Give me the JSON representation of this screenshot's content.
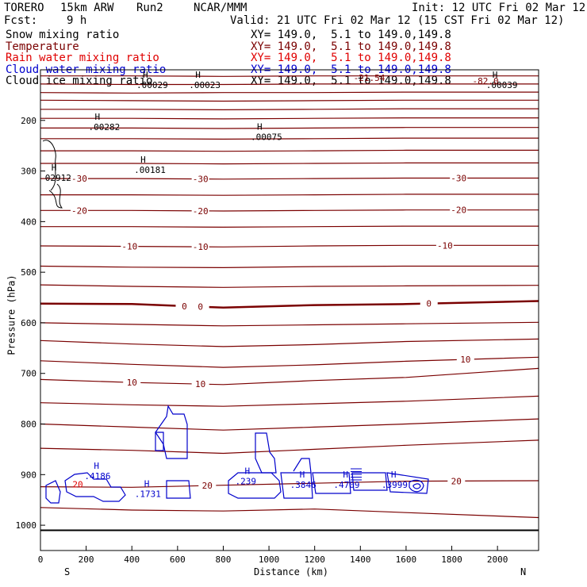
{
  "header": {
    "model": "TORERO",
    "resolution": "15km ARW",
    "run": "Run2",
    "org": "NCAR/MMM",
    "init": "Init: 12 UTC Fri 02 Mar 12",
    "fcst_label": "Fcst:",
    "fcst_value": "9 h",
    "valid": "Valid: 21 UTC Fri 02 Mar 12 (15 CST Fri 02 Mar 12)"
  },
  "fields": [
    {
      "name": "Snow mixing ratio",
      "xy": "XY= 149.0,  5.1 to 149.0,149.8",
      "color": "#000000"
    },
    {
      "name": "Temperature",
      "xy": "XY= 149.0,  5.1 to 149.0,149.8",
      "color": "#7a0000"
    },
    {
      "name": "Rain water mixing ratio",
      "xy": "XY= 149.0,  5.1 to 149.0,149.8",
      "color": "#e00000"
    },
    {
      "name": "Cloud water mixing ratio",
      "xy": "XY= 149.0,  5.1 to 149.0,149.8",
      "color": "#0000cc"
    },
    {
      "name": "Cloud ice mixing ratio",
      "xy": "XY= 149.0,  5.1 to 149.0,149.8",
      "color": "#000000"
    }
  ],
  "chart_data": {
    "type": "contour",
    "xlabel": "Distance (km)",
    "ylabel": "Pressure (hPa)",
    "xlim": [
      0,
      2180
    ],
    "ylim": [
      1050,
      100
    ],
    "x_ticks": [
      0,
      200,
      400,
      600,
      800,
      1000,
      1200,
      1400,
      1600,
      1800,
      2000
    ],
    "y_ticks": [
      200,
      300,
      400,
      500,
      600,
      700,
      800,
      900,
      1000
    ],
    "x_end_labels": {
      "left": "S",
      "right": "N"
    },
    "ground_pressure": 1010,
    "temperature_isotherms": [
      {
        "y": [
          112,
          112,
          113,
          112,
          112,
          112
        ]
      },
      {
        "y": [
          128,
          129,
          129,
          128,
          128,
          128
        ]
      },
      {
        "y": [
          145,
          146,
          145,
          145,
          144,
          144
        ]
      },
      {
        "y": [
          160,
          161,
          162,
          161,
          160,
          160
        ]
      },
      {
        "y": [
          178,
          178,
          179,
          178,
          177,
          177
        ]
      },
      {
        "y": [
          196,
          196,
          197,
          196,
          195,
          195
        ]
      },
      {
        "y": [
          215,
          215,
          216,
          215,
          214,
          214
        ]
      },
      {
        "y": [
          236,
          236,
          237,
          236,
          235,
          235
        ]
      },
      {
        "y": [
          260,
          260,
          261,
          260,
          259,
          259
        ]
      },
      {
        "y": [
          285,
          285,
          286,
          285,
          284,
          284
        ]
      },
      {
        "y": [
          315,
          315,
          316,
          315,
          314,
          314
        ],
        "label": "-30",
        "label_x": [
          170,
          700,
          1830
        ]
      },
      {
        "y": [
          347,
          347,
          348,
          347,
          346,
          346
        ]
      },
      {
        "y": [
          378,
          378,
          379,
          378,
          377,
          377
        ],
        "label": "-20",
        "label_x": [
          170,
          700,
          1830
        ]
      },
      {
        "y": [
          410,
          410,
          411,
          410,
          409,
          409
        ]
      },
      {
        "y": [
          448,
          449,
          450,
          448,
          447,
          447
        ],
        "label": "-10",
        "label_x": [
          390,
          700,
          1770
        ]
      },
      {
        "y": [
          488,
          490,
          491,
          489,
          488,
          488
        ]
      },
      {
        "y": [
          525,
          528,
          530,
          528,
          527,
          526
        ]
      },
      {
        "y": [
          562,
          563,
          570,
          565,
          563,
          557
        ],
        "label": "0",
        "label_x": [
          630,
          700,
          1700
        ],
        "bold": true
      },
      {
        "y": [
          600,
          603,
          606,
          604,
          602,
          599
        ]
      },
      {
        "y": [
          635,
          642,
          647,
          643,
          637,
          632
        ]
      },
      {
        "y": [
          675,
          682,
          688,
          683,
          676,
          668
        ],
        "label": "10",
        "label_x": [
          1860
        ]
      },
      {
        "y": [
          712,
          718,
          722,
          714,
          708,
          690
        ],
        "label": "10",
        "label_x": [
          400,
          700
        ]
      },
      {
        "y": [
          758,
          762,
          765,
          760,
          755,
          745
        ]
      },
      {
        "y": [
          800,
          806,
          812,
          806,
          800,
          790
        ]
      },
      {
        "y": [
          848,
          852,
          858,
          850,
          842,
          832
        ]
      },
      {
        "y": [
          924,
          925,
          921,
          917,
          913,
          912
        ],
        "label": "20",
        "label_x": [
          730,
          1820
        ]
      },
      {
        "y": [
          965,
          970,
          972,
          968,
          975,
          985
        ]
      }
    ],
    "temperature_x": [
      0,
      400,
      800,
      1200,
      1600,
      2180
    ],
    "maxima": [
      {
        "x": 210,
        "p": 205,
        "value": ".00282"
      },
      {
        "x": 410,
        "p": 290,
        "value": ".00181"
      },
      {
        "x": 920,
        "p": 225,
        "value": ".00075"
      },
      {
        "x": 20,
        "p": 305,
        "value": "02912"
      },
      {
        "x": 420,
        "p": 122,
        "value": ".00029"
      },
      {
        "x": 650,
        "p": 122,
        "value": ".00023"
      },
      {
        "x": 1950,
        "p": 122,
        "value": ".00039"
      }
    ],
    "top_labels": [
      {
        "x": 1890,
        "p": 122,
        "value": "-82.0"
      },
      {
        "x": 1370,
        "p": 116,
        "value": "-21.54"
      }
    ],
    "cloud_water_maxima": [
      {
        "x": 220,
        "p": 895,
        "value": ".4186"
      },
      {
        "x": 440,
        "p": 930,
        "value": ".1731"
      },
      {
        "x": 880,
        "p": 905,
        "value": ".239"
      },
      {
        "x": 1120,
        "p": 912,
        "value": ".3846"
      },
      {
        "x": 1310,
        "p": 912,
        "value": ".4709"
      },
      {
        "x": 1520,
        "p": 912,
        "value": ".3999"
      }
    ],
    "cloud_water_label": {
      "x": 140,
      "p": 925,
      "value": "20"
    }
  }
}
